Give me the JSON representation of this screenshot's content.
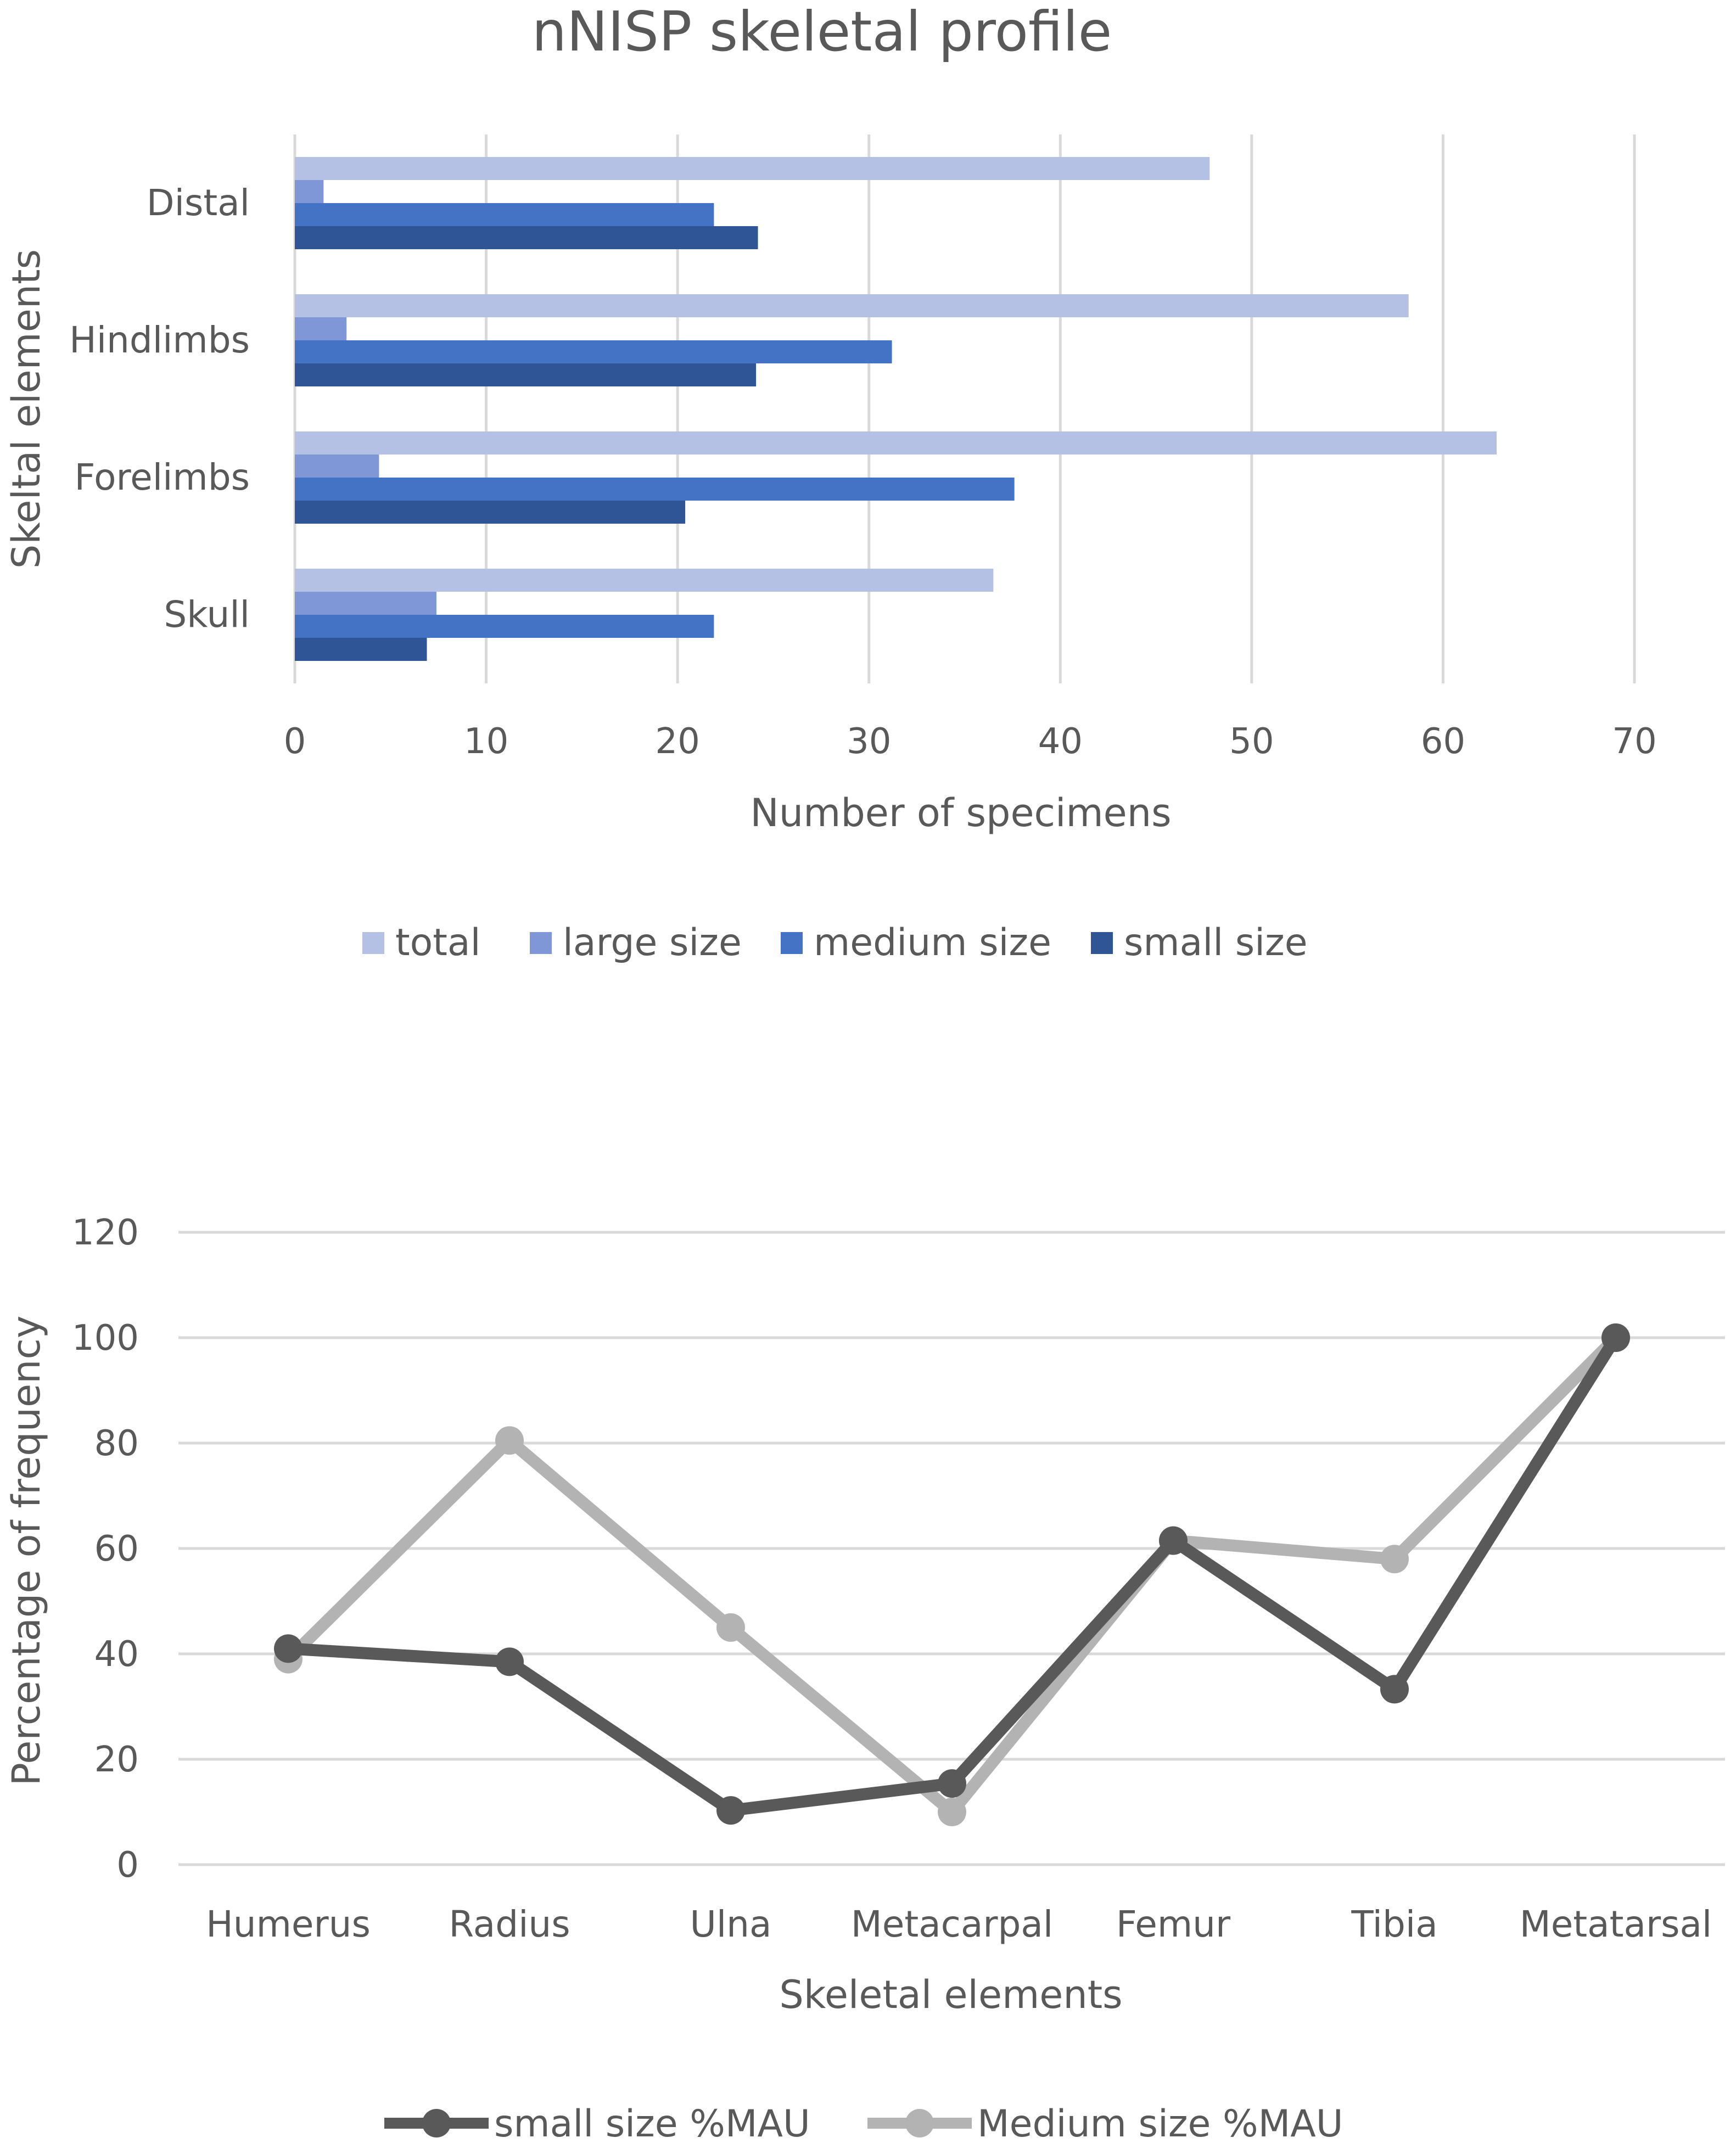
{
  "chart_data": [
    {
      "type": "bar",
      "orientation": "horizontal",
      "title": "nNISP skeletal profile",
      "xlabel": "Number of specimens",
      "ylabel": "Skeltal elements",
      "xlim": [
        0,
        70
      ],
      "xticks": [
        "0",
        "10",
        "20",
        "30",
        "40",
        "50",
        "60",
        "70"
      ],
      "categories": [
        "Skull",
        "Forelimbs",
        "Hindlimbs",
        "Distal"
      ],
      "series": [
        {
          "name": "total",
          "color": "#b4c1e4",
          "values": [
            36.5,
            62.8,
            58.2,
            47.8
          ]
        },
        {
          "name": "large size",
          "color": "#7f97d6",
          "values": [
            7.4,
            4.4,
            2.7,
            1.5
          ]
        },
        {
          "name": "medium size",
          "color": "#4472c4",
          "values": [
            21.9,
            37.6,
            31.2,
            21.9
          ]
        },
        {
          "name": "small size",
          "color": "#2f5597",
          "values": [
            6.9,
            20.4,
            24.1,
            24.2
          ]
        }
      ],
      "legend_position": "bottom",
      "grid": "vertical"
    },
    {
      "type": "line",
      "title": "",
      "xlabel": "Skeletal elements",
      "ylabel": "Percentage of frequency",
      "ylim": [
        0,
        120
      ],
      "yticks": [
        "0",
        "20",
        "40",
        "60",
        "80",
        "100",
        "120"
      ],
      "categories": [
        "Humerus",
        "Radius",
        "Ulna",
        "Metacarpal",
        "Femur",
        "Tibia",
        "Metatarsal"
      ],
      "series": [
        {
          "name": "small size %MAU",
          "color": "#595959",
          "values": [
            41,
            38.5,
            10.3,
            15.4,
            61.5,
            33.3,
            100
          ]
        },
        {
          "name": "Medium size %MAU",
          "color": "#b3b3b3",
          "values": [
            39,
            80.5,
            45,
            10,
            61.5,
            58,
            100
          ]
        }
      ],
      "legend_position": "bottom",
      "grid": "horizontal"
    }
  ]
}
